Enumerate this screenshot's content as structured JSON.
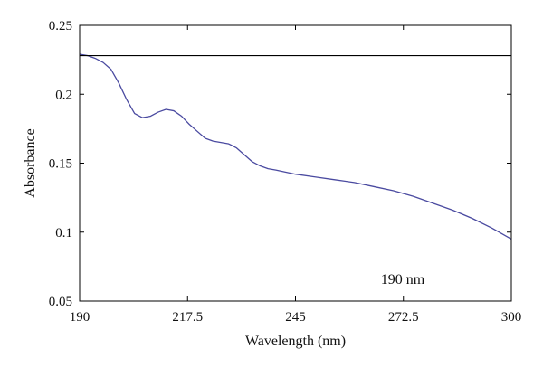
{
  "chart_data": {
    "type": "line",
    "xlabel": "Wavelength (nm)",
    "ylabel": "Absorbance",
    "xlim": [
      190,
      300
    ],
    "ylim": [
      0.05,
      0.25
    ],
    "xticks": [
      190,
      217.5,
      245,
      272.5,
      300
    ],
    "xtick_labels": [
      "190",
      "217.5",
      "245",
      "272.5",
      "300"
    ],
    "yticks": [
      0.05,
      0.1,
      0.15,
      0.2,
      0.25
    ],
    "ytick_labels": [
      "0.05",
      "0.1",
      "0.15",
      "0.2",
      "0.25"
    ],
    "grid": false,
    "annotation": "190 nm",
    "series": [
      {
        "color": "#4a4aa0",
        "x": [
          190,
          192,
          194,
          196,
          198,
          200,
          202,
          204,
          206,
          208,
          210,
          212,
          214,
          216,
          218,
          220,
          222,
          224,
          226,
          228,
          230,
          232,
          234,
          236,
          238,
          240,
          245,
          250,
          255,
          260,
          265,
          270,
          275,
          280,
          285,
          290,
          295,
          300
        ],
        "y": [
          0.229,
          0.228,
          0.226,
          0.223,
          0.218,
          0.208,
          0.196,
          0.186,
          0.183,
          0.184,
          0.187,
          0.189,
          0.188,
          0.184,
          0.178,
          0.173,
          0.168,
          0.166,
          0.165,
          0.164,
          0.161,
          0.156,
          0.151,
          0.148,
          0.146,
          0.145,
          0.142,
          0.14,
          0.138,
          0.136,
          0.133,
          0.13,
          0.126,
          0.121,
          0.116,
          0.11,
          0.103,
          0.095
        ]
      },
      {
        "color": "#000000",
        "x": [
          190,
          300
        ],
        "y": [
          0.228,
          0.228
        ]
      }
    ]
  }
}
